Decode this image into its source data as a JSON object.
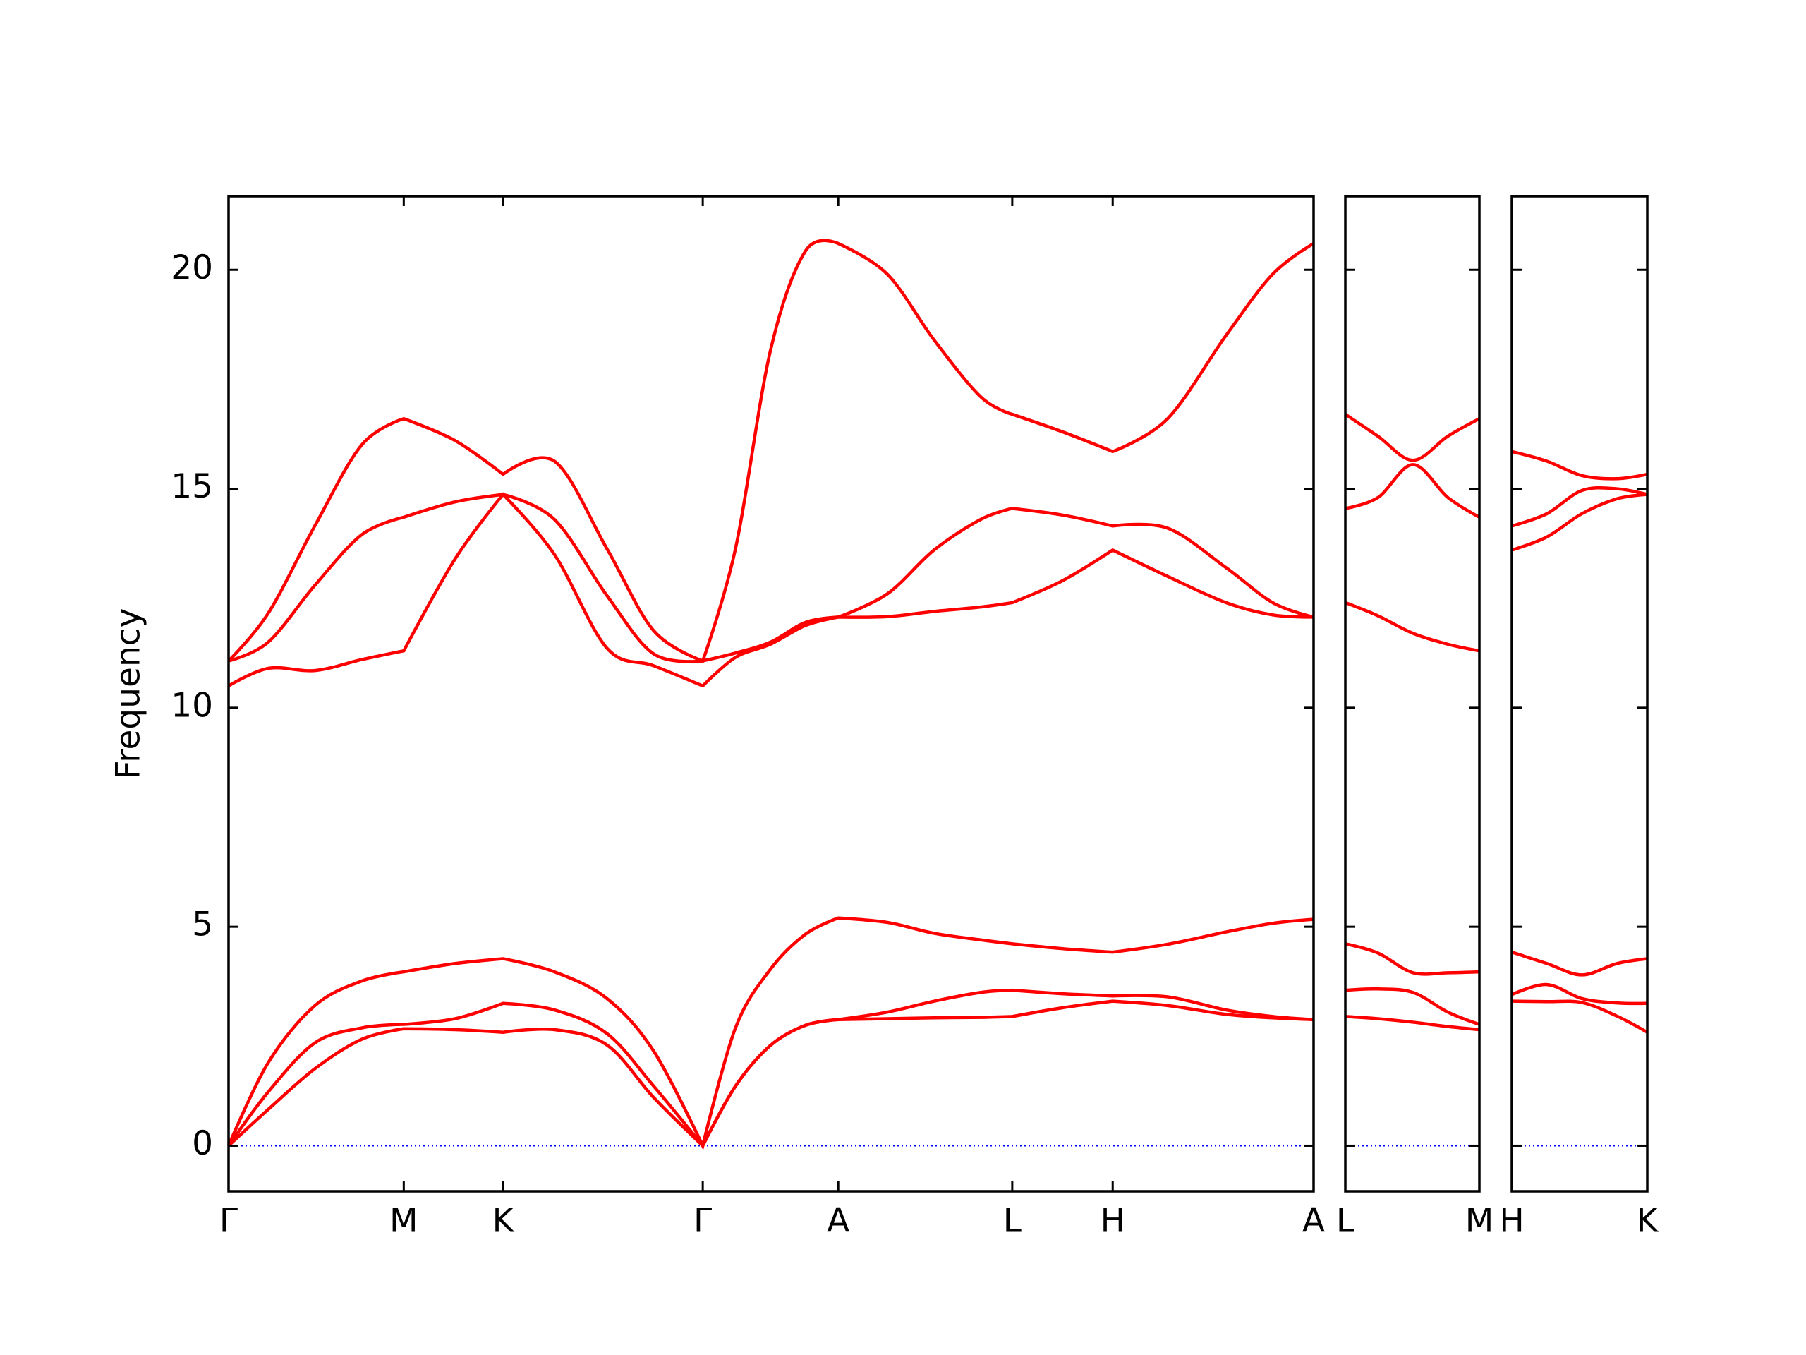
{
  "chart_data": [
    {
      "type": "line",
      "ylabel": "Frequency",
      "xlim": [
        0,
        9.29
      ],
      "xticks": [
        {
          "value": 0,
          "label": "Γ"
        },
        {
          "value": 1.5,
          "label": "M"
        },
        {
          "value": 2.35,
          "label": "K"
        },
        {
          "value": 4.06,
          "label": "Γ"
        },
        {
          "value": 5.22,
          "label": "A"
        },
        {
          "value": 6.71,
          "label": "L"
        },
        {
          "value": 7.57,
          "label": "H"
        },
        {
          "value": 9.29,
          "label": "A"
        }
      ],
      "ylim": [
        -1.04,
        21.68
      ],
      "yticks": [
        0,
        5,
        10,
        15,
        20
      ],
      "hline": {
        "y": 0,
        "color": "#0000ff"
      },
      "x": [
        0,
        0.34,
        0.74,
        1.14,
        1.5,
        1.94,
        2.35,
        2.79,
        3.24,
        3.64,
        4.06,
        4.34,
        4.64,
        4.94,
        5.22,
        5.64,
        6.04,
        6.44,
        6.71,
        7.14,
        7.57,
        8.04,
        8.54,
        8.94,
        9.29
      ],
      "series": [
        {
          "color": "#ff0000",
          "values": [
            0,
            0.83,
            1.76,
            2.43,
            2.67,
            2.65,
            2.59,
            2.65,
            2.3,
            1.1,
            0,
            1.36,
            2.29,
            2.75,
            2.88,
            2.9,
            2.92,
            2.93,
            2.95,
            3.15,
            3.3,
            3.2,
            3.0,
            2.92,
            2.88
          ]
        },
        {
          "color": "#ff0000",
          "values": [
            0,
            1.23,
            2.35,
            2.69,
            2.77,
            2.9,
            3.25,
            3.1,
            2.56,
            1.36,
            0,
            1.36,
            2.29,
            2.75,
            2.88,
            3.05,
            3.3,
            3.5,
            3.55,
            3.47,
            3.42,
            3.4,
            3.1,
            2.95,
            2.88
          ]
        },
        {
          "color": "#ff0000",
          "values": [
            0,
            1.9,
            3.2,
            3.76,
            3.97,
            4.16,
            4.27,
            3.97,
            3.36,
            2.16,
            0,
            2.69,
            4.03,
            4.83,
            5.2,
            5.1,
            4.85,
            4.7,
            4.61,
            4.5,
            4.42,
            4.6,
            4.88,
            5.08,
            5.17
          ]
        },
        {
          "color": "#ff0000",
          "values": [
            10.5,
            10.9,
            10.85,
            11.1,
            11.3,
            13.4,
            14.87,
            13.5,
            11.36,
            10.96,
            10.5,
            11.15,
            11.45,
            11.88,
            12.07,
            12.08,
            12.2,
            12.3,
            12.4,
            12.9,
            13.6,
            13.0,
            12.4,
            12.12,
            12.07
          ]
        },
        {
          "color": "#ff0000",
          "values": [
            11.07,
            11.5,
            12.8,
            13.95,
            14.35,
            14.7,
            14.87,
            14.3,
            12.56,
            11.23,
            11.07,
            11.25,
            11.5,
            11.95,
            12.07,
            12.6,
            13.6,
            14.3,
            14.55,
            14.4,
            14.15,
            14.1,
            13.2,
            12.4,
            12.07
          ]
        },
        {
          "color": "#ff0000",
          "values": [
            11.07,
            12.16,
            14.16,
            16.0,
            16.6,
            16.1,
            15.33,
            15.63,
            13.63,
            11.76,
            11.07,
            13.63,
            18.16,
            20.43,
            20.6,
            19.9,
            18.4,
            17.1,
            16.7,
            16.3,
            15.85,
            16.6,
            18.5,
            19.9,
            20.6
          ]
        }
      ]
    },
    {
      "type": "line",
      "xlim": [
        0,
        1.15
      ],
      "xticks": [
        {
          "value": 0,
          "label": "L"
        },
        {
          "value": 1.15,
          "label": "M"
        }
      ],
      "ylim": [
        -1.04,
        21.68
      ],
      "yticks": [
        0,
        5,
        10,
        15,
        20
      ],
      "hline": {
        "y": 0,
        "color": "#0000ff"
      },
      "x": [
        0,
        0.28,
        0.58,
        0.88,
        1.15
      ],
      "series": [
        {
          "color": "#ff0000",
          "values": [
            2.95,
            2.9,
            2.82,
            2.72,
            2.65
          ]
        },
        {
          "color": "#ff0000",
          "values": [
            3.55,
            3.58,
            3.5,
            3.05,
            2.77
          ]
        },
        {
          "color": "#ff0000",
          "values": [
            4.61,
            4.4,
            3.95,
            3.95,
            3.97
          ]
        },
        {
          "color": "#ff0000",
          "values": [
            12.4,
            12.1,
            11.7,
            11.45,
            11.3
          ]
        },
        {
          "color": "#ff0000",
          "values": [
            14.55,
            14.8,
            15.55,
            14.8,
            14.35
          ]
        },
        {
          "color": "#ff0000",
          "values": [
            16.7,
            16.2,
            15.65,
            16.2,
            16.6
          ]
        }
      ]
    },
    {
      "type": "line",
      "xlim": [
        0,
        1.16
      ],
      "xticks": [
        {
          "value": 0,
          "label": "H"
        },
        {
          "value": 1.16,
          "label": "K"
        }
      ],
      "ylim": [
        -1.04,
        21.68
      ],
      "yticks": [
        0,
        5,
        10,
        15,
        20
      ],
      "hline": {
        "y": 0,
        "color": "#0000ff"
      },
      "x": [
        0,
        0.3,
        0.6,
        0.9,
        1.16
      ],
      "series": [
        {
          "color": "#ff0000",
          "values": [
            3.3,
            3.29,
            3.27,
            2.96,
            2.59
          ]
        },
        {
          "color": "#ff0000",
          "values": [
            3.45,
            3.68,
            3.36,
            3.26,
            3.25
          ]
        },
        {
          "color": "#ff0000",
          "values": [
            4.42,
            4.16,
            3.9,
            4.16,
            4.27
          ]
        },
        {
          "color": "#ff0000",
          "values": [
            13.6,
            13.9,
            14.43,
            14.77,
            14.87
          ]
        },
        {
          "color": "#ff0000",
          "values": [
            14.15,
            14.43,
            14.96,
            15.0,
            14.87
          ]
        },
        {
          "color": "#ff0000",
          "values": [
            15.85,
            15.63,
            15.3,
            15.23,
            15.33
          ]
        }
      ]
    }
  ]
}
